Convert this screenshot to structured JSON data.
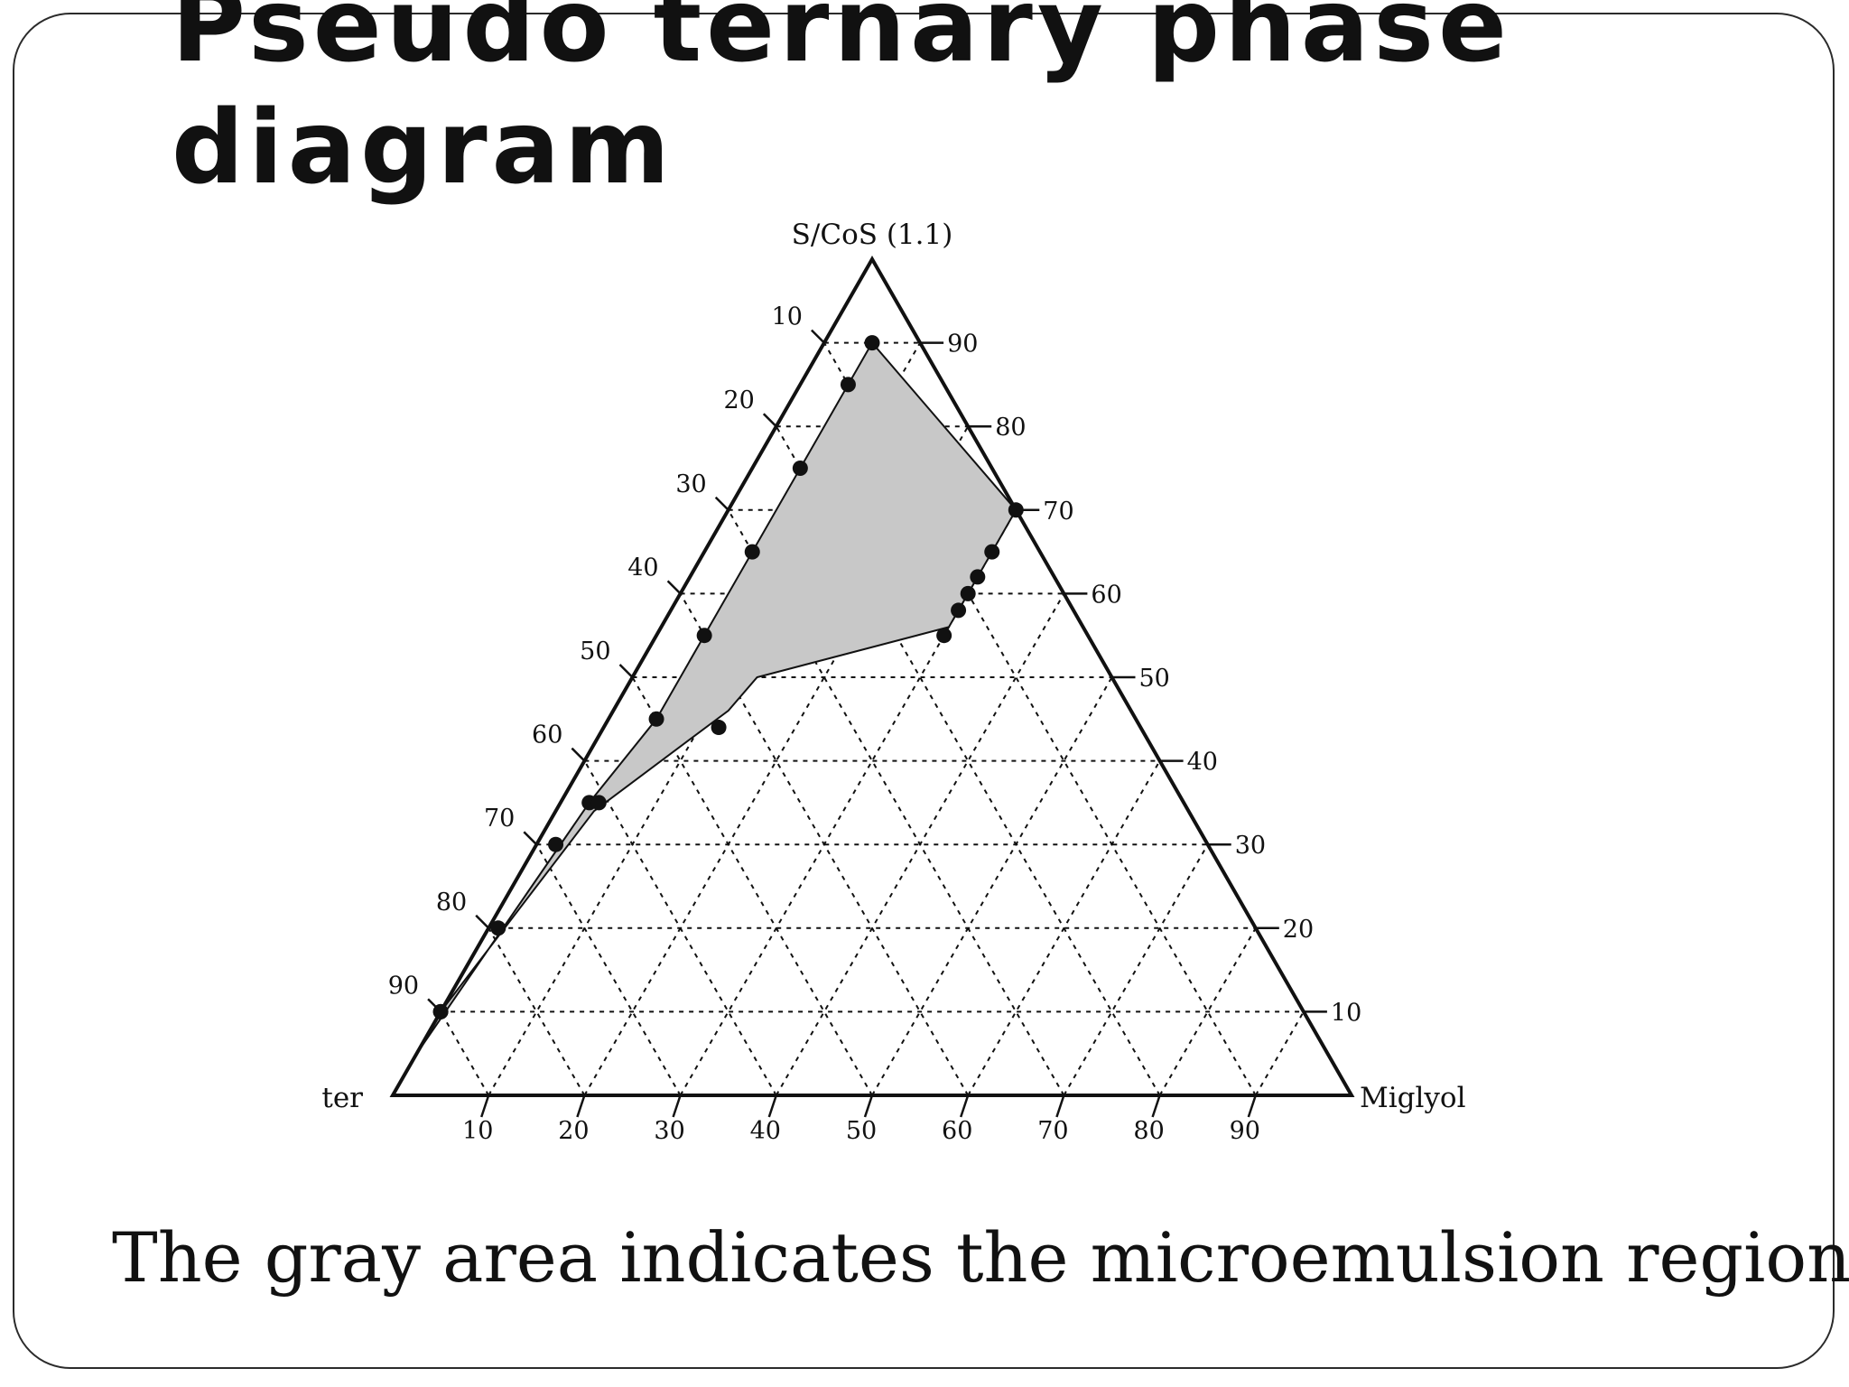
{
  "slide": {
    "title_line1": "Pseudo ternary phase",
    "title_line2": "diagram",
    "caption": "The gray area indicates the microemulsion region"
  },
  "colors": {
    "region_fill": "#c8c8c8",
    "line": "#111111",
    "background": "#ffffff"
  },
  "chart_data": {
    "type": "ternary",
    "vertices": {
      "top": "S/CoS (1.1)",
      "left": "ter",
      "right": "Miglyol"
    },
    "left_edge_ticks": [
      "10",
      "20",
      "30",
      "40",
      "50",
      "60",
      "70",
      "80",
      "90"
    ],
    "right_edge_ticks": [
      "90",
      "80",
      "70",
      "60",
      "50",
      "40",
      "30",
      "20",
      "10"
    ],
    "bottom_edge_ticks": [
      "10",
      "20",
      "30",
      "40",
      "50",
      "60",
      "70",
      "80",
      "90"
    ],
    "grid": "dashed, every 10",
    "microemulsion_region": {
      "description_visible": false,
      "upper_boundary": [
        {
          "scos": 90,
          "miglyol": 5
        },
        {
          "scos": 85,
          "miglyol": 5
        },
        {
          "scos": 75,
          "miglyol": 5
        },
        {
          "scos": 65,
          "miglyol": 5
        },
        {
          "scos": 55,
          "miglyol": 5
        },
        {
          "scos": 45,
          "miglyol": 5
        },
        {
          "scos": 35,
          "miglyol": 3
        },
        {
          "scos": 25,
          "miglyol": 2
        },
        {
          "scos": 15,
          "miglyol": 1
        },
        {
          "scos": 5,
          "miglyol": 0
        }
      ],
      "lower_boundary": [
        {
          "scos": 70,
          "miglyol": 30
        },
        {
          "scos": 65,
          "miglyol": 30
        },
        {
          "scos": 62,
          "miglyol": 30
        },
        {
          "scos": 60,
          "miglyol": 30
        },
        {
          "scos": 56,
          "miglyol": 30
        },
        {
          "scos": 50,
          "miglyol": 13
        },
        {
          "scos": 46,
          "miglyol": 12
        },
        {
          "scos": 34,
          "miglyol": 4
        },
        {
          "scos": 10,
          "miglyol": 0
        }
      ],
      "points": [
        {
          "scos": 90,
          "miglyol": 5
        },
        {
          "scos": 85,
          "miglyol": 5
        },
        {
          "scos": 75,
          "miglyol": 5
        },
        {
          "scos": 65,
          "miglyol": 5
        },
        {
          "scos": 55,
          "miglyol": 5
        },
        {
          "scos": 45,
          "miglyol": 5
        },
        {
          "scos": 35,
          "miglyol": 3
        },
        {
          "scos": 35,
          "miglyol": 4
        },
        {
          "scos": 30,
          "miglyol": 2
        },
        {
          "scos": 20,
          "miglyol": 1
        },
        {
          "scos": 10,
          "miglyol": 0
        },
        {
          "scos": 10,
          "miglyol": 0
        },
        {
          "scos": 70,
          "miglyol": 30
        },
        {
          "scos": 65,
          "miglyol": 30
        },
        {
          "scos": 62,
          "miglyol": 30
        },
        {
          "scos": 60,
          "miglyol": 30
        },
        {
          "scos": 58,
          "miglyol": 30
        },
        {
          "scos": 55,
          "miglyol": 30
        },
        {
          "scos": 44,
          "miglyol": 12
        }
      ]
    }
  }
}
